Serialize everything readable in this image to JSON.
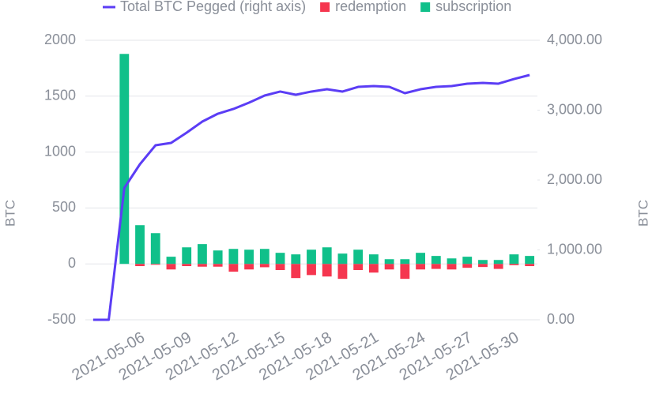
{
  "chart_data": {
    "type": "bar-line",
    "categories": [
      null,
      "2021-05-06",
      null,
      null,
      "2021-05-09",
      null,
      null,
      "2021-05-12",
      null,
      null,
      "2021-05-15",
      null,
      null,
      "2021-05-18",
      null,
      null,
      "2021-05-21",
      null,
      null,
      "2021-05-24",
      null,
      null,
      "2021-05-27",
      null,
      null,
      "2021-05-30",
      null,
      null,
      null
    ],
    "series": [
      {
        "name": "Total BTC Pegged (right axis)",
        "type": "line",
        "axis": "y2",
        "color": "#5b3df5",
        "values": [
          0,
          0,
          1887,
          2226,
          2497,
          2531,
          2678,
          2836,
          2949,
          3017,
          3107,
          3209,
          3266,
          3220,
          3266,
          3299,
          3266,
          3333,
          3345,
          3333,
          3243,
          3299,
          3333,
          3345,
          3379,
          3390,
          3379,
          3446,
          3503
        ]
      },
      {
        "name": "redemption",
        "type": "bar",
        "color": "#f5364f",
        "values": [
          null,
          null,
          0,
          -20,
          -8,
          -50,
          -20,
          -25,
          -25,
          -70,
          -50,
          -30,
          -55,
          -127,
          -100,
          -113,
          -134,
          -55,
          -78,
          -50,
          -134,
          -50,
          -45,
          -50,
          -35,
          -28,
          -45,
          -12,
          -20
        ]
      },
      {
        "name": "subscription",
        "type": "bar",
        "color": "#10c08a",
        "values": [
          null,
          null,
          1878,
          346,
          275,
          64,
          148,
          177,
          120,
          134,
          127,
          134,
          99,
          85,
          127,
          148,
          92,
          127,
          85,
          42,
          42,
          99,
          71,
          49,
          64,
          35,
          35,
          85,
          71
        ]
      }
    ],
    "y_label": "BTC",
    "y2_label": "BTC",
    "ylim": [
      -500,
      2000
    ],
    "yticks": [
      -500,
      0,
      500,
      1000,
      1500,
      2000
    ],
    "y2lim": [
      0,
      4000
    ],
    "y2ticks": [
      {
        "value": 0,
        "label": "0.00"
      },
      {
        "value": 1000,
        "label": "1,000.00"
      },
      {
        "value": 2000,
        "label": "2,000.00"
      },
      {
        "value": 3000,
        "label": "3,000.00"
      },
      {
        "value": 4000,
        "label": "4,000.00"
      }
    ],
    "grid": true,
    "legend": "top"
  }
}
